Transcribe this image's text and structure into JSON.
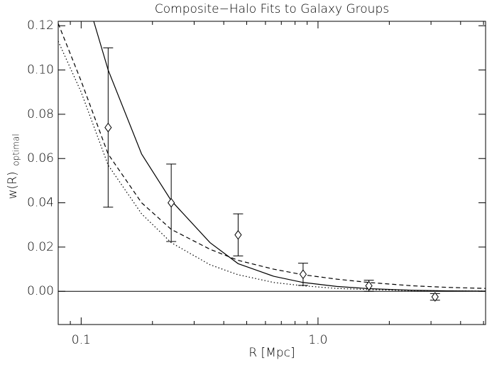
{
  "chart_data": {
    "type": "line",
    "title": "Composite−Halo Fits to Galaxy Groups",
    "xlabel": "R [Mpc]",
    "ylabel": "w(R)",
    "ylabel_sub": "optimal",
    "xscale": "log",
    "xlim": [
      0.08,
      5.1
    ],
    "ylim": [
      -0.015,
      0.122
    ],
    "xticks": [
      0.1,
      {
        "value": 1.0,
        "label": "1.0"
      }
    ],
    "xminor": [
      0.09,
      0.2,
      0.3,
      0.4,
      0.5,
      0.6,
      0.7,
      0.8,
      0.9,
      2,
      3,
      4,
      5
    ],
    "yticks": [
      {
        "value": 0,
        "label": "0.00"
      },
      {
        "value": 0.02,
        "label": "0.02"
      },
      {
        "value": 0.04,
        "label": "0.04"
      },
      {
        "value": 0.06,
        "label": "0.06"
      },
      {
        "value": 0.08,
        "label": "0.08"
      },
      {
        "value": 0.1,
        "label": "0.10"
      },
      {
        "value": 0.12,
        "label": "0.12"
      }
    ],
    "hline": 0,
    "series": [
      {
        "color": "#000000",
        "style": "solid",
        "x": [
          0.113,
          0.13,
          0.18,
          0.24,
          0.35,
          0.46,
          0.65,
          0.865,
          1.2,
          1.64,
          2.5,
          3.5,
          5.1
        ],
        "values": [
          0.122,
          0.1,
          0.062,
          0.041,
          0.022,
          0.0125,
          0.0068,
          0.004,
          0.0022,
          0.0012,
          0.0005,
          0.0002,
          0.0001
        ]
      },
      {
        "color": "#000000",
        "style": "dashed",
        "x": [
          0.08,
          0.1,
          0.13,
          0.18,
          0.24,
          0.35,
          0.46,
          0.65,
          0.865,
          1.2,
          1.64,
          2.5,
          3.5,
          5.1
        ],
        "values": [
          0.121,
          0.095,
          0.062,
          0.04,
          0.028,
          0.019,
          0.014,
          0.01,
          0.0075,
          0.0055,
          0.004,
          0.0025,
          0.0018,
          0.0013
        ]
      },
      {
        "color": "#000000",
        "style": "dotted",
        "x": [
          0.08,
          0.1,
          0.13,
          0.18,
          0.24,
          0.35,
          0.46,
          0.65,
          0.865,
          1.2,
          1.64,
          2.5,
          5.1
        ],
        "values": [
          0.113,
          0.09,
          0.057,
          0.035,
          0.022,
          0.012,
          0.0075,
          0.004,
          0.0025,
          0.0013,
          0.0008,
          0.0003,
          0.0001
        ]
      },
      {
        "color": "#000000",
        "style": "points",
        "marker": "diamond",
        "x": [
          0.13,
          0.24,
          0.46,
          0.865,
          1.64,
          3.12
        ],
        "values": [
          0.074,
          0.04,
          0.0255,
          0.0077,
          0.0025,
          -0.0025
        ],
        "errors": [
          0.036,
          0.0175,
          0.0095,
          0.005,
          0.0025,
          0.0015
        ]
      }
    ]
  }
}
